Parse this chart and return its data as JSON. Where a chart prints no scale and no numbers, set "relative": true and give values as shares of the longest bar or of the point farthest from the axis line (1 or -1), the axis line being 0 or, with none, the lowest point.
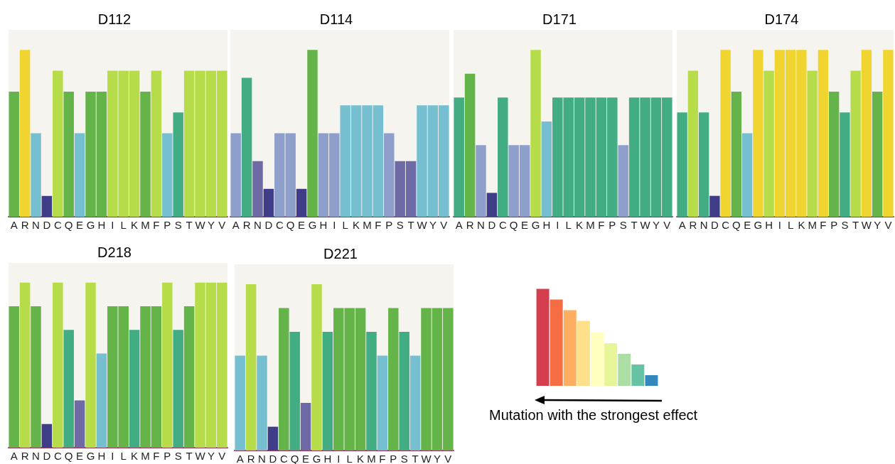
{
  "chart_data": [
    {
      "type": "bar",
      "title": "D112",
      "relative": true,
      "categories": [
        "A",
        "R",
        "N",
        "D",
        "C",
        "Q",
        "E",
        "G",
        "H",
        "I",
        "L",
        "K",
        "M",
        "F",
        "P",
        "S",
        "T",
        "W",
        "Y",
        "V"
      ],
      "values": [
        0.75,
        1,
        0.5,
        0.125,
        0.875,
        0.75,
        0.5,
        0.75,
        0.75,
        0.875,
        0.875,
        0.875,
        0.75,
        0.875,
        0.5,
        0.625,
        0.875,
        0.875,
        0.875,
        0.875
      ],
      "colors": [
        "#64b449",
        "#f0d531",
        "#75bfd1",
        "#3f3d87",
        "#b7dc49",
        "#64b449",
        "#75bfd1",
        "#64b449",
        "#64b449",
        "#b7dc49",
        "#b7dc49",
        "#b7dc49",
        "#64b449",
        "#b7dc49",
        "#75bfd1",
        "#42ac82",
        "#b7dc49",
        "#b7dc49",
        "#b7dc49",
        "#b7dc49"
      ]
    },
    {
      "type": "bar",
      "title": "D114",
      "relative": true,
      "categories": [
        "A",
        "R",
        "N",
        "D",
        "C",
        "Q",
        "E",
        "G",
        "H",
        "I",
        "L",
        "K",
        "M",
        "F",
        "P",
        "S",
        "T",
        "W",
        "Y",
        "V"
      ],
      "values": [
        0.5,
        0.833,
        0.333,
        0.167,
        0.5,
        0.5,
        0.167,
        1,
        0.5,
        0.5,
        0.667,
        0.667,
        0.667,
        0.667,
        0.5,
        0.333,
        0.333,
        0.667,
        0.667,
        0.667
      ],
      "colors": [
        "#8f9fcb",
        "#42ac82",
        "#6e6aa6",
        "#3f3d87",
        "#8f9fcb",
        "#8f9fcb",
        "#3f3d87",
        "#64b449",
        "#8f9fcb",
        "#8f9fcb",
        "#75bfd1",
        "#75bfd1",
        "#75bfd1",
        "#75bfd1",
        "#8f9fcb",
        "#6e6aa6",
        "#6e6aa6",
        "#75bfd1",
        "#75bfd1",
        "#75bfd1"
      ]
    },
    {
      "type": "bar",
      "title": "D171",
      "relative": true,
      "categories": [
        "A",
        "R",
        "N",
        "D",
        "C",
        "Q",
        "E",
        "G",
        "H",
        "I",
        "L",
        "K",
        "M",
        "F",
        "P",
        "S",
        "T",
        "W",
        "Y",
        "V"
      ],
      "values": [
        0.714,
        0.857,
        0.429,
        0.143,
        0.714,
        0.429,
        0.429,
        1,
        0.571,
        0.714,
        0.714,
        0.714,
        0.714,
        0.714,
        0.714,
        0.429,
        0.714,
        0.714,
        0.714,
        0.714
      ],
      "colors": [
        "#42ac82",
        "#64b449",
        "#8f9fcb",
        "#3f3d87",
        "#42ac82",
        "#8f9fcb",
        "#8f9fcb",
        "#b7dc49",
        "#75bfd1",
        "#42ac82",
        "#42ac82",
        "#42ac82",
        "#42ac82",
        "#42ac82",
        "#42ac82",
        "#8f9fcb",
        "#42ac82",
        "#42ac82",
        "#42ac82",
        "#42ac82"
      ]
    },
    {
      "type": "bar",
      "title": "D174",
      "relative": true,
      "categories": [
        "A",
        "R",
        "N",
        "D",
        "C",
        "Q",
        "E",
        "G",
        "H",
        "I",
        "L",
        "K",
        "M",
        "F",
        "P",
        "S",
        "T",
        "W",
        "Y",
        "V"
      ],
      "values": [
        0.625,
        0.875,
        0.625,
        0.125,
        1,
        0.75,
        0.5,
        1,
        0.875,
        1,
        1,
        1,
        0.875,
        1,
        0.75,
        0.625,
        0.875,
        1,
        0.75,
        1
      ],
      "colors": [
        "#42ac82",
        "#b7dc49",
        "#42ac82",
        "#3f3d87",
        "#f0d531",
        "#64b449",
        "#75bfd1",
        "#f0d531",
        "#b7dc49",
        "#f0d531",
        "#f0d531",
        "#f0d531",
        "#b7dc49",
        "#f0d531",
        "#64b449",
        "#42ac82",
        "#b7dc49",
        "#f0d531",
        "#64b449",
        "#f0d531"
      ]
    },
    {
      "type": "bar",
      "title": "D218",
      "relative": true,
      "categories": [
        "A",
        "R",
        "N",
        "D",
        "C",
        "Q",
        "E",
        "G",
        "H",
        "I",
        "L",
        "K",
        "M",
        "F",
        "P",
        "S",
        "T",
        "W",
        "Y",
        "V"
      ],
      "values": [
        0.857,
        1,
        0.857,
        0.143,
        1,
        0.714,
        0.286,
        1,
        0.571,
        0.857,
        0.857,
        0.714,
        0.857,
        0.857,
        1,
        0.714,
        0.857,
        1,
        1,
        1
      ],
      "colors": [
        "#64b449",
        "#b7dc49",
        "#64b449",
        "#3f3d87",
        "#b7dc49",
        "#42ac82",
        "#6e6aa6",
        "#b7dc49",
        "#75bfd1",
        "#64b449",
        "#64b449",
        "#42ac82",
        "#64b449",
        "#64b449",
        "#b7dc49",
        "#42ac82",
        "#64b449",
        "#b7dc49",
        "#b7dc49",
        "#b7dc49"
      ]
    },
    {
      "type": "bar",
      "title": "D221",
      "relative": true,
      "categories": [
        "A",
        "R",
        "N",
        "D",
        "C",
        "Q",
        "E",
        "G",
        "H",
        "I",
        "L",
        "K",
        "M",
        "F",
        "P",
        "S",
        "T",
        "W",
        "Y",
        "V"
      ],
      "values": [
        0.571,
        1,
        0.571,
        0.143,
        0.857,
        0.714,
        0.286,
        1,
        0.714,
        0.857,
        0.857,
        0.857,
        0.714,
        0.571,
        0.857,
        0.714,
        0.571,
        0.857,
        0.857,
        0.857
      ],
      "colors": [
        "#75bfd1",
        "#b7dc49",
        "#75bfd1",
        "#3f3d87",
        "#64b449",
        "#42ac82",
        "#6e6aa6",
        "#b7dc49",
        "#42ac82",
        "#64b449",
        "#64b449",
        "#64b449",
        "#42ac82",
        "#75bfd1",
        "#64b449",
        "#42ac82",
        "#75bfd1",
        "#64b449",
        "#64b449",
        "#64b449"
      ]
    },
    {
      "type": "bar",
      "relative": true,
      "categories": [
        null,
        null,
        null,
        null,
        null,
        null,
        null,
        null,
        null
      ],
      "values": [
        1,
        0.89,
        0.78,
        0.67,
        0.55,
        0.44,
        0.33,
        0.22,
        0.11
      ],
      "colors": [
        "#d53e4f",
        "#f46d43",
        "#fdae61",
        "#fee08b",
        "#ffffbf",
        "#e6f598",
        "#abdda4",
        "#66c2a5",
        "#3288bd"
      ],
      "annotations": [
        "Mutation with the strongest effect"
      ]
    }
  ]
}
